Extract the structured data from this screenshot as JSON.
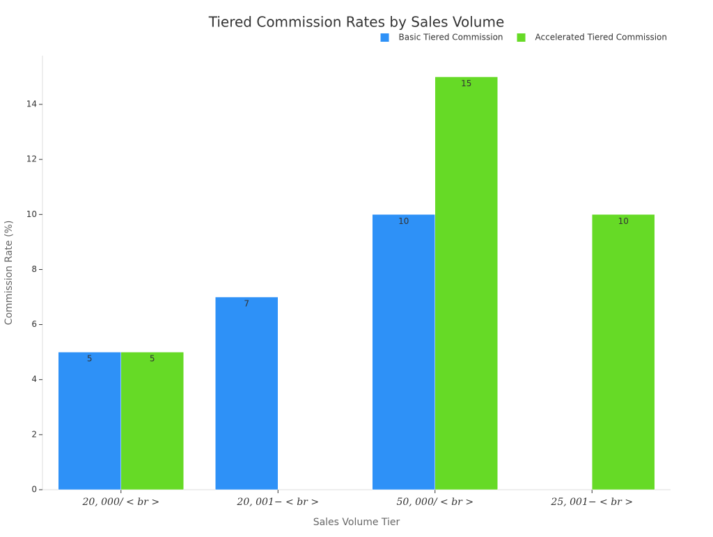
{
  "chart_data": {
    "type": "bar",
    "title": "Tiered Commission Rates by Sales Volume",
    "x_label": "Sales Volume Tier",
    "y_label": "Commission Rate (%)",
    "categories": [
      "20, 000/ < br >",
      "20, 001− < br >",
      "50, 000/ < br >",
      "25, 001− < br >"
    ],
    "series": [
      {
        "name": "Basic Tiered Commission",
        "color": "#2e91f7",
        "values": [
          5,
          7,
          10,
          null
        ]
      },
      {
        "name": "Accelerated Tiered Commission",
        "color": "#66da26",
        "values": [
          5,
          null,
          15,
          10
        ]
      }
    ],
    "ylim": [
      0,
      15.77
    ],
    "yticks": [
      0,
      2,
      4,
      6,
      8,
      10,
      12,
      14
    ],
    "legend": "top-right"
  }
}
